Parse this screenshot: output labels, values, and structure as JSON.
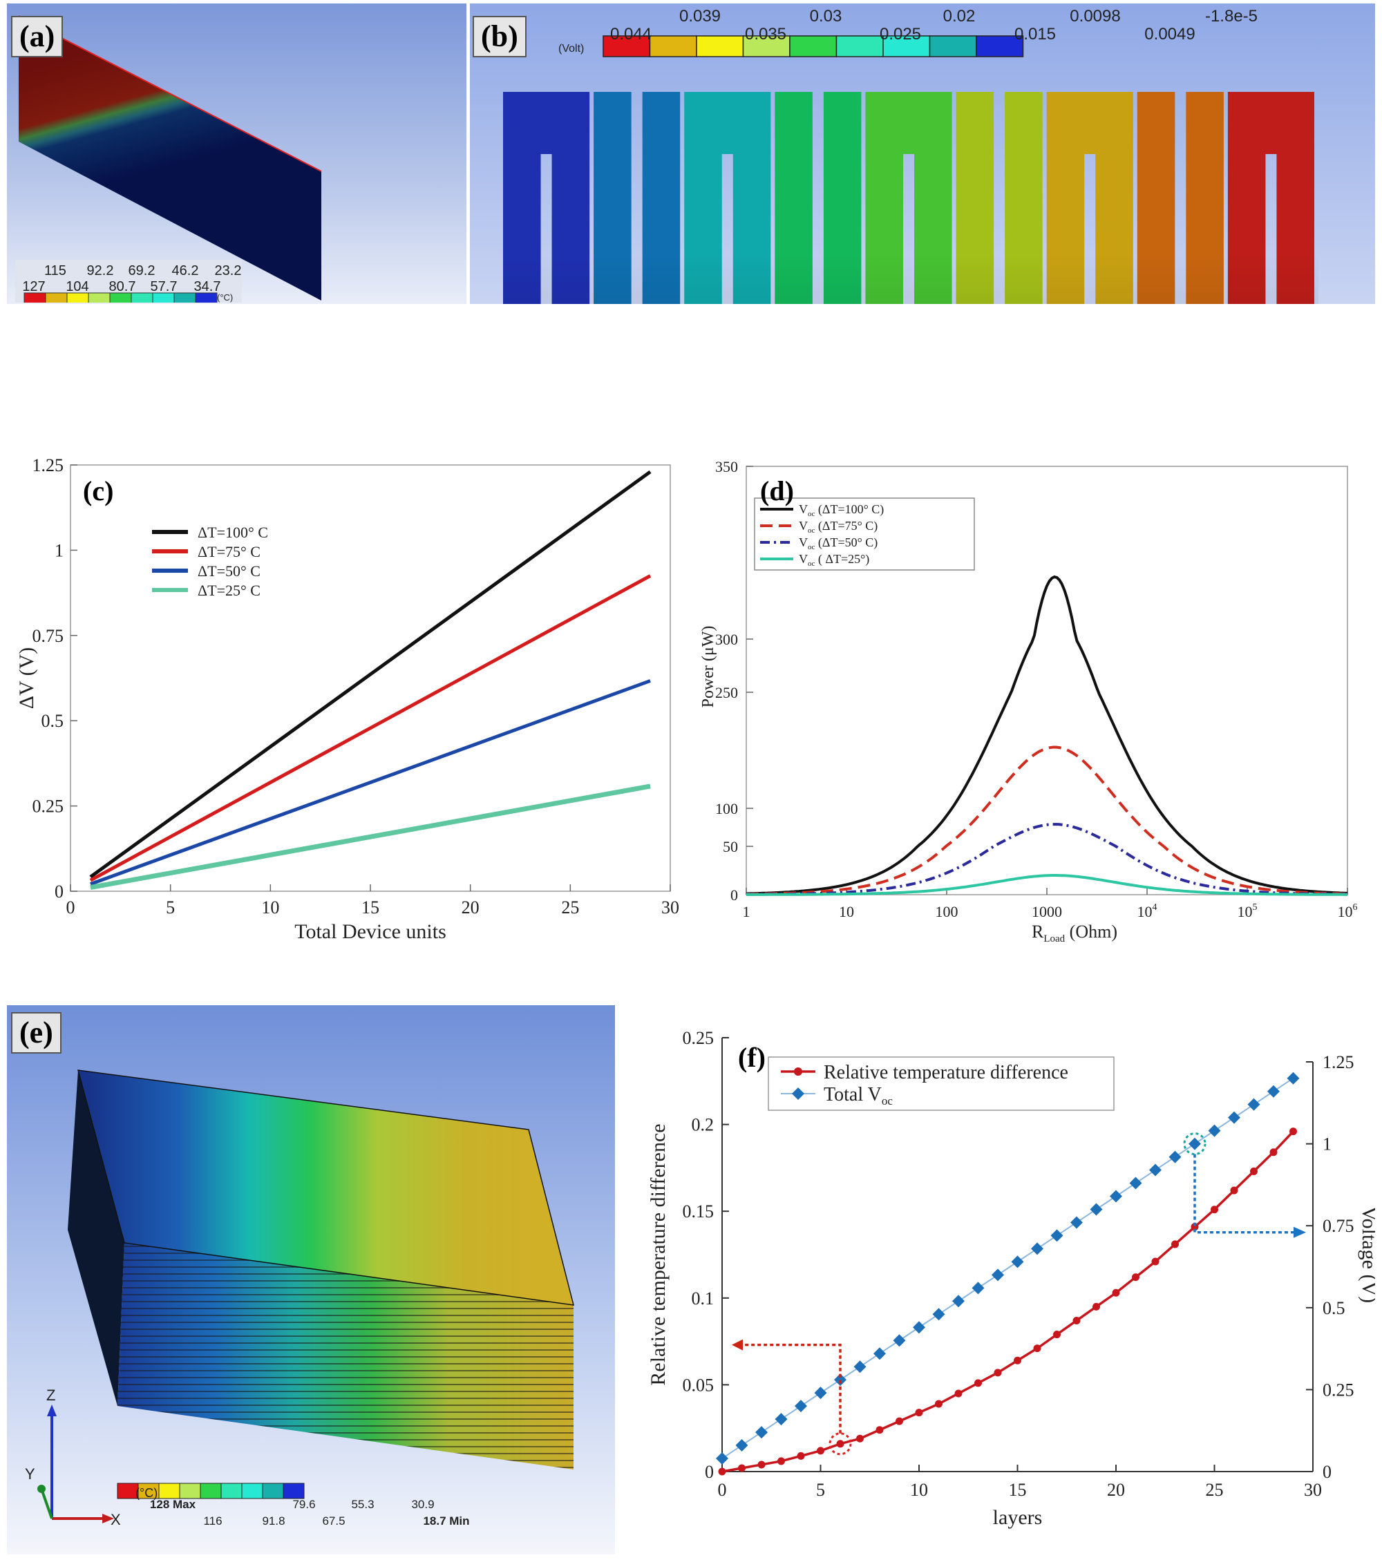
{
  "labels": {
    "a": "(a)",
    "b": "(b)",
    "c": "(c)",
    "d": "(d)",
    "e": "(e)",
    "f": "(f)"
  },
  "colors": {
    "contour": [
      "#e0131a",
      "#e0b411",
      "#f7f112",
      "#b9e85b",
      "#2fd44a",
      "#2ee6b4",
      "#27e8d3",
      "#18b0aa",
      "#1b2cd6"
    ],
    "black": "#111111",
    "red": "#d41c1c",
    "blue": "#1b47a7",
    "green": "#5fc7a0",
    "teal": "#2cc6a2",
    "navy": "#2a2a9a",
    "f_red": "#c8161d",
    "f_blue": "#1d6fb8"
  },
  "colorbar_a": {
    "unit": "(°C)",
    "top_labels": [
      "115",
      "92.2",
      "69.2",
      "46.2",
      "23.2"
    ],
    "bottom_labels": [
      "127",
      "104",
      "80.7",
      "57.7",
      "34.7"
    ]
  },
  "colorbar_b": {
    "unit": "(Volt)",
    "top_labels": [
      "0.039",
      "0.03",
      "0.02",
      "0.0098",
      "-1.8e-5"
    ],
    "bottom_labels": [
      "0.044",
      "0.035",
      "0.025",
      "0.015",
      "0.0049"
    ]
  },
  "colorbar_e": {
    "unit": "(°C)",
    "top_labels": [
      "128 Max",
      "79.6",
      "55.3",
      "30.9"
    ],
    "bottom_labels": [
      "116",
      "91.8",
      "67.5",
      "18.7 Min"
    ],
    "axes": {
      "z": "Z",
      "y": "Y",
      "x": "X"
    }
  },
  "chart_data": [
    {
      "id": "c",
      "type": "line",
      "xlabel": "Total Device units",
      "ylabel": "ΔV (V)",
      "xlim": [
        0,
        30
      ],
      "ylim": [
        0,
        1.25
      ],
      "xticks": [
        "0",
        "5",
        "10",
        "15",
        "20",
        "25",
        "30"
      ],
      "yticks": [
        "0",
        "0.25",
        "0.5",
        "0.75",
        "1",
        "1.25"
      ],
      "legend_position": "top-left",
      "series": [
        {
          "name": "ΔT=100° C",
          "x": [
            1,
            29
          ],
          "y": [
            0.042,
            1.23
          ]
        },
        {
          "name": "ΔT=75° C",
          "x": [
            1,
            29
          ],
          "y": [
            0.032,
            0.925
          ]
        },
        {
          "name": "ΔT=50° C",
          "x": [
            1,
            29
          ],
          "y": [
            0.021,
            0.617
          ]
        },
        {
          "name": "ΔT=25° C",
          "x": [
            1,
            29
          ],
          "y": [
            0.011,
            0.308
          ]
        }
      ]
    },
    {
      "id": "d",
      "type": "line",
      "xlabel": "R",
      "xlabel_sub": "Load",
      "xlabel_unit": "(Ohm)",
      "ylabel": "Power (μW)",
      "xscale": "log",
      "xlim_log10": [
        0,
        6
      ],
      "ylim": [
        0,
        350
      ],
      "xticks": [
        "1",
        "10",
        "100",
        "1000",
        "10",
        "10",
        "10"
      ],
      "xtick_sup": [
        "",
        "",
        "",
        "",
        "4",
        "5",
        "6"
      ],
      "yticks": [
        "0",
        "50",
        "100",
        "250",
        "300",
        "350"
      ],
      "ytick_values": [
        0,
        50,
        100,
        250,
        300,
        350
      ],
      "peak_R": 1200,
      "legend_position": "top-left",
      "series": [
        {
          "label": "V",
          "sub": "oc",
          "cond": " (ΔT=100° C)",
          "peak": 318
        },
        {
          "label": "V",
          "sub": "oc",
          "cond": " (ΔT=75° C)",
          "peak": 179
        },
        {
          "label": "V",
          "sub": "oc",
          "cond": " (ΔT=50° C)",
          "peak": 79
        },
        {
          "label": "V",
          "sub": "oc",
          "cond": " ( ΔT=25°)",
          "peak": 20
        }
      ]
    },
    {
      "id": "f",
      "type": "line",
      "xlabel": "layers",
      "ylabel_left": "Relative temperature difference",
      "ylabel_right": "Voltage (V)",
      "xlim": [
        0,
        30
      ],
      "ylim_left": [
        0,
        0.25
      ],
      "ylim_right": [
        0,
        1.25
      ],
      "xticks": [
        "0",
        "5",
        "10",
        "15",
        "20",
        "25",
        "30"
      ],
      "yticks_left": [
        "0",
        "0.05",
        "0.1",
        "0.15",
        "0.2",
        "0.25"
      ],
      "yticks_right": [
        "0",
        "0.25",
        "0.5",
        "0.75",
        "1",
        "1.25"
      ],
      "legend_position": "top-left",
      "series": [
        {
          "name": "Relative temperature difference",
          "axis": "left",
          "x": [
            0,
            1,
            2,
            3,
            4,
            5,
            6,
            7,
            8,
            9,
            10,
            11,
            12,
            13,
            14,
            15,
            16,
            17,
            18,
            19,
            20,
            21,
            22,
            23,
            24,
            25,
            26,
            27,
            28,
            29
          ],
          "y": [
            0.0,
            0.002,
            0.004,
            0.006,
            0.009,
            0.012,
            0.016,
            0.019,
            0.024,
            0.029,
            0.034,
            0.039,
            0.045,
            0.051,
            0.057,
            0.064,
            0.071,
            0.079,
            0.087,
            0.095,
            0.103,
            0.112,
            0.121,
            0.131,
            0.141,
            0.151,
            0.162,
            0.173,
            0.184,
            0.196
          ]
        },
        {
          "name": "Total V",
          "name_sub": "oc",
          "axis": "right",
          "x": [
            0,
            1,
            2,
            3,
            4,
            5,
            6,
            7,
            8,
            9,
            10,
            11,
            12,
            13,
            14,
            15,
            16,
            17,
            18,
            19,
            20,
            21,
            22,
            23,
            24,
            25,
            26,
            27,
            28,
            29
          ],
          "y": [
            0.04,
            0.08,
            0.12,
            0.16,
            0.2,
            0.24,
            0.28,
            0.32,
            0.36,
            0.4,
            0.44,
            0.48,
            0.52,
            0.56,
            0.6,
            0.64,
            0.68,
            0.72,
            0.76,
            0.8,
            0.84,
            0.88,
            0.92,
            0.96,
            1.0,
            1.04,
            1.08,
            1.12,
            1.16,
            1.2
          ]
        }
      ]
    }
  ]
}
